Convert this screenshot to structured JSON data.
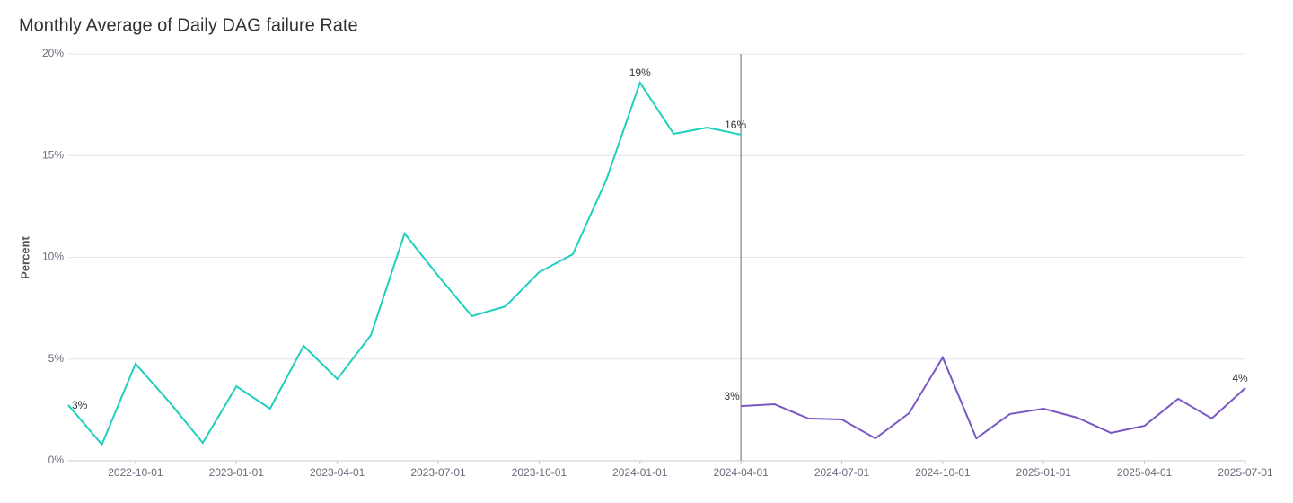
{
  "chart_data": {
    "type": "line",
    "title": "Monthly Average of Daily DAG failure Rate",
    "y_label": "Percent",
    "xlim": [
      "2022-08-01",
      "2025-07-01"
    ],
    "xticks": [
      "2022-10-01",
      "2023-01-01",
      "2023-04-01",
      "2023-07-01",
      "2023-10-01",
      "2024-01-01",
      "2024-04-01",
      "2024-07-01",
      "2024-10-01",
      "2025-01-01",
      "2025-04-01",
      "2025-07-01"
    ],
    "ylim": [
      0,
      20
    ],
    "yticks": [
      {
        "value": 0,
        "label": "0%"
      },
      {
        "value": 5,
        "label": "5%"
      },
      {
        "value": 10,
        "label": "10%"
      },
      {
        "value": 15,
        "label": "15%"
      },
      {
        "value": 20,
        "label": "20%"
      }
    ],
    "grid": true,
    "vertical_line_x": "2024-04-01",
    "series": [
      {
        "color": "#1fcfbd",
        "x": [
          "2022-08-01",
          "2022-09-01",
          "2022-10-01",
          "2022-11-01",
          "2022-12-01",
          "2023-01-01",
          "2023-02-01",
          "2023-03-01",
          "2023-04-01",
          "2023-05-01",
          "2023-06-01",
          "2023-07-01",
          "2023-08-01",
          "2023-09-01",
          "2023-10-01",
          "2023-11-01",
          "2023-12-01",
          "2024-01-01",
          "2024-02-01",
          "2024-03-01",
          "2024-04-01"
        ],
        "values": [
          2.74,
          0.8,
          4.77,
          2.9,
          0.88,
          3.66,
          2.56,
          5.65,
          4.02,
          6.18,
          11.17,
          9.09,
          7.11,
          7.59,
          9.27,
          10.15,
          13.82,
          18.59,
          16.07,
          16.38,
          16.03
        ],
        "value_labels": [
          "3%",
          null,
          null,
          null,
          null,
          null,
          null,
          null,
          null,
          null,
          null,
          null,
          null,
          null,
          null,
          null,
          null,
          "19%",
          null,
          null,
          "16%"
        ]
      },
      {
        "color": "#7a57c2",
        "x": [
          "2024-04-01",
          "2024-05-01",
          "2024-06-01",
          "2024-07-01",
          "2024-08-01",
          "2024-09-01",
          "2024-10-01",
          "2024-11-01",
          "2024-12-01",
          "2025-01-01",
          "2025-02-01",
          "2025-03-01",
          "2025-04-01",
          "2025-05-01",
          "2025-06-01",
          "2025-07-01"
        ],
        "values": [
          2.69,
          2.78,
          2.08,
          2.03,
          1.1,
          2.34,
          5.08,
          1.1,
          2.3,
          2.56,
          2.12,
          1.37,
          1.72,
          3.05,
          2.08,
          3.58
        ],
        "value_labels": [
          "3%",
          null,
          null,
          null,
          null,
          null,
          null,
          null,
          null,
          null,
          null,
          null,
          null,
          null,
          null,
          "4%"
        ]
      }
    ]
  }
}
